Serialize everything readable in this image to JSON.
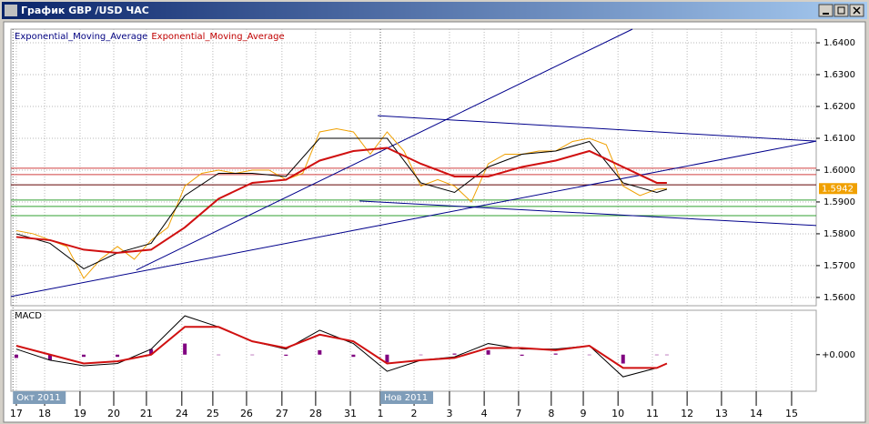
{
  "window": {
    "title": "График GBP /USD ЧАС"
  },
  "chart_data": [
    {
      "type": "line",
      "xlim": [
        -0.16,
        23.73
      ],
      "xticks": [
        {
          "value": 0,
          "label": "17"
        },
        {
          "value": 0.84,
          "label": "18"
        },
        {
          "value": 1.89,
          "label": "19"
        },
        {
          "value": 2.89,
          "label": "20"
        },
        {
          "value": 3.86,
          "label": "21"
        },
        {
          "value": 4.91,
          "label": "24"
        },
        {
          "value": 5.83,
          "label": "25"
        },
        {
          "value": 6.83,
          "label": "26"
        },
        {
          "value": 7.88,
          "label": "27"
        },
        {
          "value": 8.88,
          "label": "28"
        },
        {
          "value": 9.91,
          "label": "31"
        },
        {
          "value": 10.8,
          "label": "1"
        },
        {
          "value": 11.8,
          "label": "2"
        },
        {
          "value": 12.85,
          "label": "3"
        },
        {
          "value": 13.88,
          "label": "4"
        },
        {
          "value": 14.9,
          "label": "7"
        },
        {
          "value": 15.87,
          "label": "8"
        },
        {
          "value": 16.82,
          "label": "9"
        },
        {
          "value": 17.85,
          "label": "10"
        },
        {
          "value": 18.87,
          "label": "11"
        },
        {
          "value": 19.9,
          "label": "12"
        },
        {
          "value": 20.92,
          "label": "13"
        },
        {
          "value": 21.95,
          "label": "14"
        },
        {
          "value": 23.0,
          "label": "15"
        }
      ],
      "period_labels": [
        {
          "value": -0.1,
          "label": "Окт 2011"
        },
        {
          "value": 10.8,
          "label": "Нов 2011"
        }
      ],
      "ylim": [
        1.5574,
        1.6443
      ],
      "yticks": [
        {
          "value": 1.56,
          "label": "1.5600"
        },
        {
          "value": 1.57,
          "label": "1.5700"
        },
        {
          "value": 1.58,
          "label": "1.5800"
        },
        {
          "value": 1.59,
          "label": "1.5900"
        },
        {
          "value": 1.6,
          "label": "1.6000"
        },
        {
          "value": 1.61,
          "label": "1.6100"
        },
        {
          "value": 1.62,
          "label": "1.6200"
        },
        {
          "value": 1.63,
          "label": "1.6300"
        },
        {
          "value": 1.64,
          "label": "1.6400"
        }
      ],
      "grid": true,
      "series": [
        {
          "color": "#f0a000",
          "x": [
            0,
            0.5,
            1,
            1.5,
            2,
            2.5,
            3,
            3.5,
            4,
            4.5,
            5,
            5.5,
            6,
            6.5,
            7,
            7.5,
            8,
            8.5,
            9,
            9.5,
            10,
            10.5,
            11,
            11.5,
            12,
            12.5,
            13,
            13.5,
            14,
            14.5,
            15,
            15.5,
            16,
            16.5,
            17,
            17.5,
            18,
            18.5,
            19,
            19.3
          ],
          "values": [
            1.581,
            1.58,
            1.578,
            1.576,
            1.566,
            1.572,
            1.576,
            1.572,
            1.578,
            1.582,
            1.595,
            1.599,
            1.6,
            1.599,
            1.6,
            1.6,
            1.597,
            1.599,
            1.612,
            1.613,
            1.612,
            1.605,
            1.612,
            1.606,
            1.595,
            1.597,
            1.595,
            1.59,
            1.602,
            1.605,
            1.605,
            1.606,
            1.606,
            1.609,
            1.61,
            1.608,
            1.595,
            1.592,
            1.594,
            1.5942
          ]
        },
        {
          "name": "Exponential_Moving_Average",
          "color": "#000000",
          "label_color": "#000080",
          "x": [
            0,
            1,
            2,
            3,
            4,
            5,
            6,
            7,
            8,
            9,
            10,
            11,
            12,
            13,
            14,
            15,
            16,
            17,
            18,
            19,
            19.3
          ],
          "values": [
            1.58,
            1.577,
            1.569,
            1.574,
            1.577,
            1.592,
            1.599,
            1.599,
            1.598,
            1.61,
            1.61,
            1.61,
            1.596,
            1.593,
            1.601,
            1.605,
            1.606,
            1.609,
            1.596,
            1.593,
            1.594
          ]
        },
        {
          "name": "Exponential_Moving_Average",
          "color": "#d01010",
          "label_color": "#c00000",
          "x": [
            0,
            1,
            2,
            3,
            4,
            5,
            6,
            7,
            8,
            9,
            10,
            11,
            12,
            13,
            14,
            15,
            16,
            17,
            18,
            19,
            19.3
          ],
          "values": [
            1.579,
            1.578,
            1.575,
            1.574,
            1.575,
            1.582,
            1.591,
            1.596,
            1.597,
            1.603,
            1.606,
            1.607,
            1.602,
            1.598,
            1.598,
            1.601,
            1.603,
            1.606,
            1.601,
            1.596,
            1.596
          ]
        }
      ],
      "levels": [
        {
          "price": 1.6006,
          "color": "#d04040"
        },
        {
          "price": 1.5986,
          "color": "#d04040"
        },
        {
          "price": 1.5954,
          "color": "#600000"
        },
        {
          "price": 1.5906,
          "color": "#30a030"
        },
        {
          "price": 1.5886,
          "color": "#30a030"
        },
        {
          "price": 1.5857,
          "color": "#30a030"
        }
      ],
      "trendline_color": "#00008b",
      "trendlines": [
        {
          "x": [
            -0.16,
            23.73
          ],
          "y": [
            1.5603,
            1.6091
          ]
        },
        {
          "x": [
            3.56,
            18.28
          ],
          "y": [
            1.5686,
            1.6443
          ]
        },
        {
          "x": [
            10.72,
            23.73
          ],
          "y": [
            1.6171,
            1.6091
          ]
        },
        {
          "x": [
            10.18,
            23.73
          ],
          "y": [
            1.5903,
            1.5826
          ]
        }
      ],
      "last_price": 1.5942
    },
    {
      "type": "macd",
      "title": "MACD",
      "ylim": [
        -0.0033,
        0.004
      ],
      "yticks": [
        {
          "value": 0,
          "label": "+0.000"
        }
      ],
      "x": [
        0,
        1,
        2,
        3,
        4,
        5,
        6,
        7,
        8,
        9,
        10,
        11,
        12,
        13,
        14,
        15,
        16,
        17,
        18,
        19,
        19.3
      ],
      "histogram": {
        "color": "#800080",
        "values": [
          -0.0003,
          -0.0005,
          -0.0002,
          -0.0002,
          0.0005,
          0.001,
          0.0,
          0.0,
          -0.0001,
          0.0004,
          -0.0002,
          -0.0007,
          0.0,
          0.0001,
          0.0004,
          -0.0001,
          0.0001,
          0.0,
          -0.0008,
          0.0,
          0.0
        ]
      },
      "series": [
        {
          "color": "#000000",
          "values": [
            0.0005,
            -0.0005,
            -0.001,
            -0.0008,
            0.0005,
            0.0035,
            0.0025,
            0.0012,
            0.0005,
            0.0022,
            0.001,
            -0.0015,
            -0.0005,
            -0.0002,
            0.001,
            0.0005,
            0.0005,
            0.0008,
            -0.002,
            -0.0012,
            -0.0008
          ]
        },
        {
          "color": "#d01010",
          "values": [
            0.0008,
            0.0,
            -0.0008,
            -0.0006,
            0.0,
            0.0025,
            0.0025,
            0.0012,
            0.0006,
            0.0018,
            0.0012,
            -0.0008,
            -0.0005,
            -0.0003,
            0.0006,
            0.0006,
            0.0004,
            0.0008,
            -0.0012,
            -0.0012,
            -0.0008
          ]
        }
      ]
    }
  ]
}
